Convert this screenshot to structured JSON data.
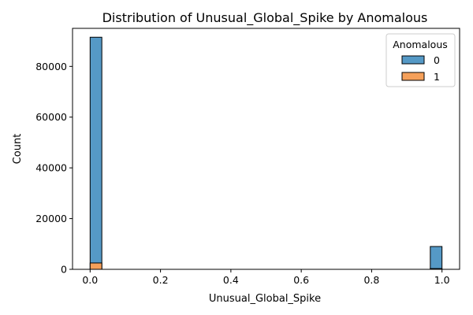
{
  "chart_data": {
    "type": "bar",
    "title": "Distribution of Unusual_Global_Spike by Anomalous",
    "xlabel": "Unusual_Global_Spike",
    "ylabel": "Count",
    "xlim": [
      -0.05,
      1.05
    ],
    "ylim": [
      0,
      95000
    ],
    "xticks": [
      0.0,
      0.2,
      0.4,
      0.6,
      0.8,
      1.0
    ],
    "xtick_labels": [
      "0.0",
      "0.2",
      "0.4",
      "0.6",
      "0.8",
      "1.0"
    ],
    "yticks": [
      0,
      20000,
      40000,
      60000,
      80000
    ],
    "ytick_labels": [
      "0",
      "20000",
      "40000",
      "60000",
      "80000"
    ],
    "bins": [
      {
        "x0": 0.0,
        "x1": 0.0333
      },
      {
        "x0": 0.9667,
        "x1": 1.0
      }
    ],
    "series": [
      {
        "name": "0",
        "color": "#5599c6",
        "values": [
          91500,
          9000
        ]
      },
      {
        "name": "1",
        "color": "#f5a05a",
        "values": [
          2500,
          300
        ]
      }
    ],
    "stacking": "layered",
    "legend": {
      "title": "Anomalous",
      "placement": "top-right",
      "entries": [
        "0",
        "1"
      ]
    },
    "grid": false
  }
}
